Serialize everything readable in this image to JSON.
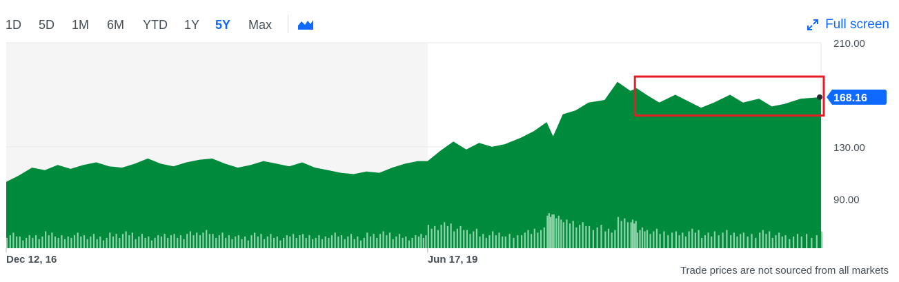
{
  "toolbar": {
    "ranges": [
      "1D",
      "5D",
      "1M",
      "6M",
      "YTD",
      "1Y",
      "5Y",
      "Max"
    ],
    "active_range": "5Y",
    "fullscreen_label": "Full screen",
    "chart_type_icon": "mountain-chart-icon",
    "fullscreen_icon": "expand-arrows-icon"
  },
  "colors": {
    "area": "#008a3c",
    "volume": "#8ed3a8",
    "accent": "#0f69ff",
    "highlight_box": "#e81c24",
    "pre_period_shade": "#f5f5f5"
  },
  "chart_data": {
    "type": "area",
    "title": "",
    "xlabel": "",
    "ylabel": "",
    "ylim": [
      52,
      210
    ],
    "y_ticks": [
      {
        "value": 210,
        "label": "210.00"
      },
      {
        "value": 130,
        "label": "130.00"
      },
      {
        "value": 90,
        "label": "90.00"
      }
    ],
    "x_ticks": [
      {
        "value": "2016-12-12",
        "label": "Dec 12, 16"
      },
      {
        "value": "2019-06-17",
        "label": "Jun 17, 19"
      }
    ],
    "xlim": [
      "2016-12-12",
      "2021-10-20"
    ],
    "shaded_until": "2019-06-17",
    "last_price": 168.16,
    "last_price_label": "168.16",
    "grid": true,
    "series": [
      {
        "x": [
          "2016-12-12",
          "2017-01-09",
          "2017-02-06",
          "2017-03-06",
          "2017-04-03",
          "2017-05-01",
          "2017-05-29",
          "2017-06-26",
          "2017-07-24",
          "2017-08-21",
          "2017-09-18",
          "2017-10-16",
          "2017-11-13",
          "2017-12-11",
          "2018-01-08",
          "2018-02-05",
          "2018-03-05",
          "2018-04-02",
          "2018-04-30",
          "2018-05-28",
          "2018-06-25",
          "2018-07-23",
          "2018-08-20",
          "2018-09-17",
          "2018-10-15",
          "2018-11-12",
          "2018-12-10",
          "2019-01-07",
          "2019-02-04",
          "2019-03-04",
          "2019-04-01",
          "2019-04-29",
          "2019-05-27",
          "2019-06-17",
          "2019-07-15",
          "2019-08-12",
          "2019-09-09",
          "2019-10-07",
          "2019-11-04",
          "2019-12-02",
          "2020-01-06",
          "2020-02-03",
          "2020-03-02",
          "2020-03-16",
          "2020-04-06",
          "2020-05-04",
          "2020-06-01",
          "2020-07-06",
          "2020-08-03",
          "2020-08-31",
          "2020-09-14",
          "2020-10-05",
          "2020-11-02",
          "2020-12-07",
          "2021-01-04",
          "2021-02-01",
          "2021-03-01",
          "2021-04-05",
          "2021-05-03",
          "2021-06-07",
          "2021-07-05",
          "2021-08-02",
          "2021-09-06",
          "2021-10-20"
        ],
        "values": [
          103,
          108,
          114,
          112,
          116,
          113,
          116,
          118,
          115,
          114,
          117,
          121,
          117,
          115,
          118,
          120,
          121,
          117,
          114,
          116,
          119,
          117,
          115,
          118,
          114,
          112,
          110,
          109,
          111,
          110,
          114,
          117,
          119,
          119,
          127,
          134,
          128,
          133,
          130,
          132,
          137,
          142,
          149,
          138,
          155,
          158,
          164,
          166,
          180,
          173,
          175,
          170,
          164,
          170,
          165,
          160,
          164,
          170,
          164,
          167,
          161,
          163,
          167,
          168.16
        ],
        "volume": [
          62,
          60,
          61,
          63,
          60,
          62,
          61,
          60,
          62,
          63,
          61,
          60,
          62,
          61,
          63,
          64,
          62,
          61,
          60,
          62,
          61,
          60,
          62,
          61,
          60,
          62,
          61,
          60,
          62,
          63,
          61,
          60,
          62,
          68,
          70,
          67,
          65,
          62,
          63,
          61,
          64,
          66,
          78,
          76,
          72,
          70,
          68,
          66,
          74,
          72,
          66,
          65,
          64,
          63,
          65,
          62,
          64,
          63,
          62,
          64,
          62,
          61,
          62,
          63
        ]
      }
    ]
  },
  "disclaimer": "Trade prices are not sourced from all markets"
}
